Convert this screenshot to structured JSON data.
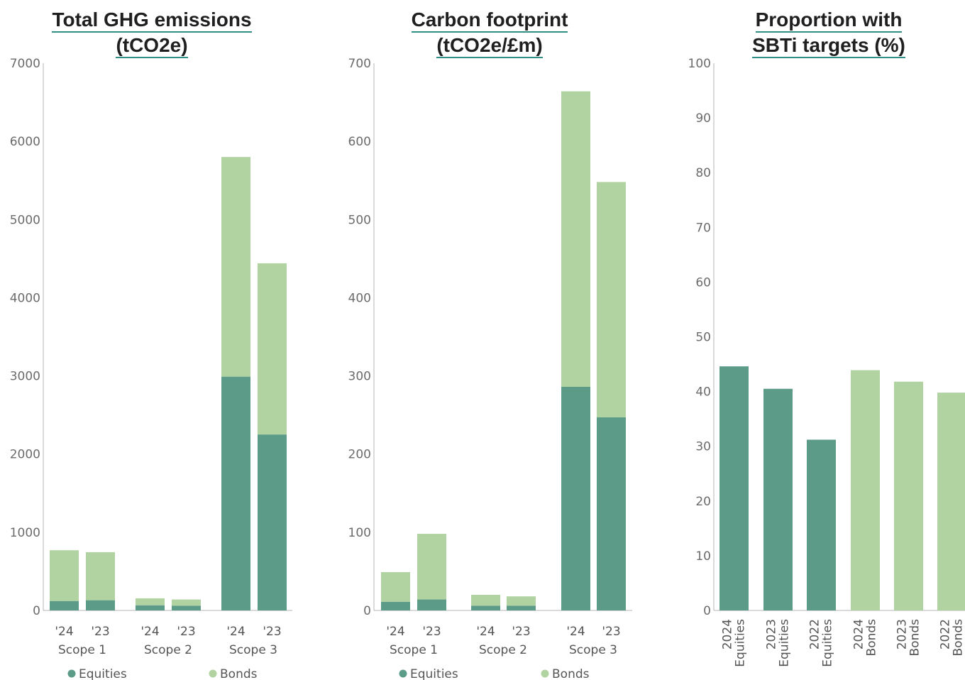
{
  "chart_data": [
    {
      "type": "bar",
      "stacked": true,
      "title": [
        "Total GHG emissions",
        "(tCO2e)"
      ],
      "categories": [
        "'24",
        "'23",
        "'24",
        "'23",
        "'24",
        "'23"
      ],
      "groups": [
        "Scope 1",
        "Scope 2",
        "Scope 3"
      ],
      "series": [
        {
          "name": "Equities",
          "values": [
            120,
            130,
            65,
            60,
            2990,
            2250
          ]
        },
        {
          "name": "Bonds",
          "values": [
            650,
            615,
            90,
            80,
            2810,
            2190
          ]
        }
      ],
      "ylim": [
        0,
        7000
      ],
      "yticks": [
        0,
        1000,
        2000,
        3000,
        4000,
        5000,
        6000,
        7000
      ],
      "legend": "bottom"
    },
    {
      "type": "bar",
      "stacked": true,
      "title": [
        "Carbon footprint",
        "(tCO2e/£m)"
      ],
      "categories": [
        "'24",
        "'23",
        "'24",
        "'23",
        "'24",
        "'23"
      ],
      "groups": [
        "Scope 1",
        "Scope 2",
        "Scope 3"
      ],
      "series": [
        {
          "name": "Equities",
          "values": [
            11,
            14,
            6,
            6,
            286,
            247
          ]
        },
        {
          "name": "Bonds",
          "values": [
            38,
            84,
            14,
            12,
            378,
            301
          ]
        }
      ],
      "ylim": [
        0,
        700
      ],
      "yticks": [
        0,
        100,
        200,
        300,
        400,
        500,
        600,
        700
      ],
      "legend": "bottom"
    },
    {
      "type": "bar",
      "title": [
        "Proportion with",
        "SBTi targets (%)"
      ],
      "categories": [
        [
          "2024",
          "Equities"
        ],
        [
          "2023",
          "Equities"
        ],
        [
          "2022",
          "Equities"
        ],
        [
          "2024",
          "Bonds"
        ],
        [
          "2023",
          "Bonds"
        ],
        [
          "2022",
          "Bonds"
        ]
      ],
      "values": [
        44.6,
        40.5,
        31.2,
        43.9,
        41.8,
        39.8
      ],
      "bar_colors": [
        "#5c9b87",
        "#5c9b87",
        "#5c9b87",
        "#b0d3a1",
        "#b0d3a1",
        "#b0d3a1"
      ],
      "ylim": [
        0,
        100
      ],
      "yticks": [
        0,
        10,
        20,
        30,
        40,
        50,
        60,
        70,
        80,
        90,
        100
      ]
    }
  ],
  "colors": {
    "equities": "#5c9b87",
    "bonds": "#b0d3a1",
    "title_underline": "#2f8f86"
  }
}
